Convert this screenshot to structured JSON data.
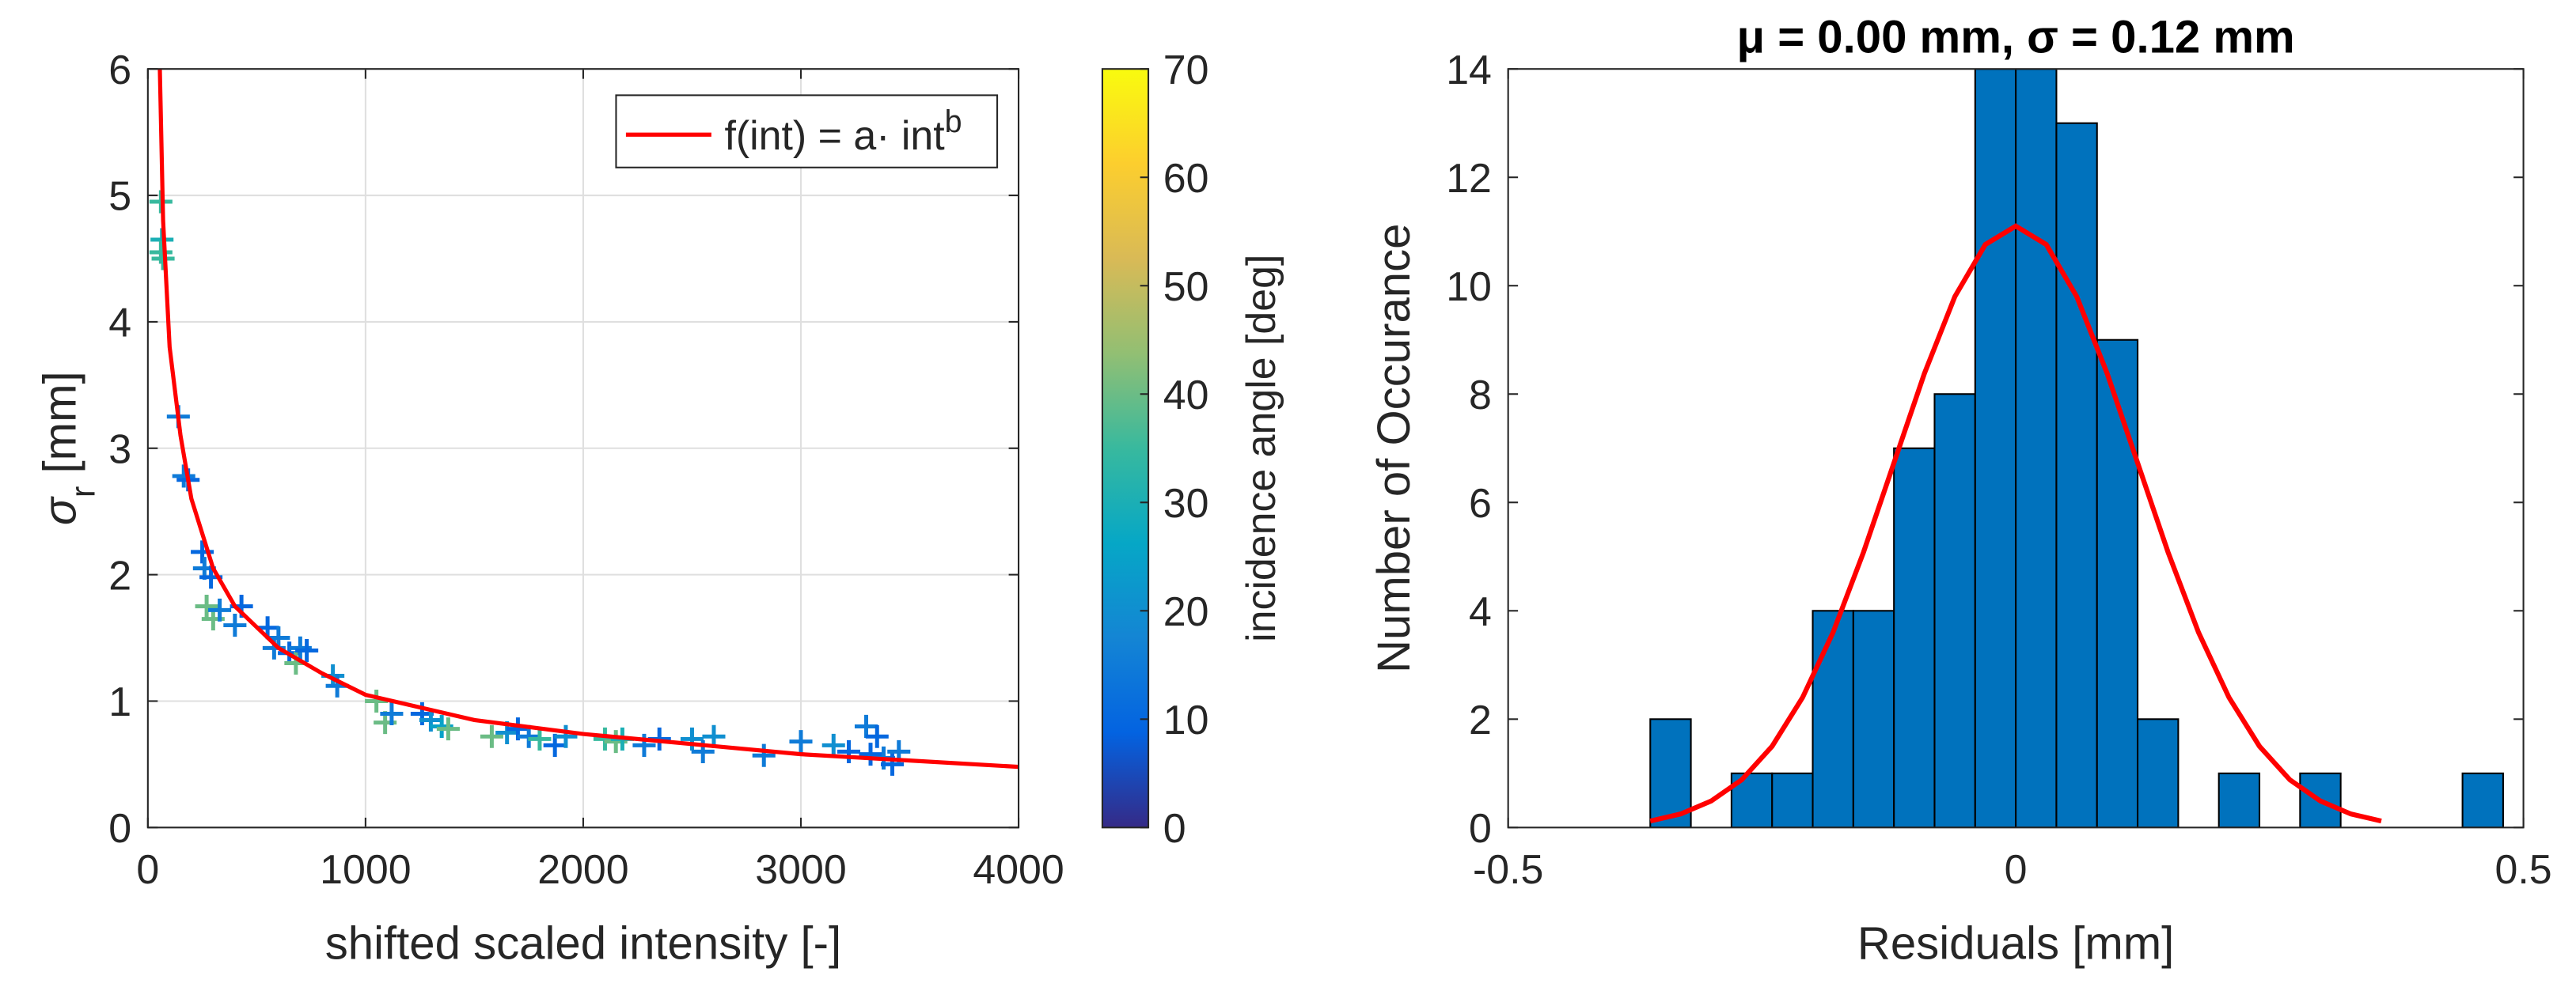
{
  "chart_data": [
    {
      "type": "scatter",
      "xlabel": "shifted scaled intensity [-]",
      "ylabel": "σ",
      "ylabel_sub": "r",
      "ylabel_rest": " [mm]",
      "xlim": [
        0,
        4000
      ],
      "xticks": [
        0,
        1000,
        2000,
        3000,
        4000
      ],
      "ylim": [
        0,
        6
      ],
      "yticks": [
        0,
        1,
        2,
        3,
        4,
        5,
        6
      ],
      "grid": true,
      "legend": "northeast",
      "series": [
        {
          "kind": "line",
          "name": "f(int) = a· int",
          "name_sup": "b",
          "color": "#ff0000",
          "x": [
            55,
            70,
            100,
            150,
            200,
            300,
            400,
            600,
            800,
            1000,
            1500,
            2000,
            3000,
            4000
          ],
          "values": [
            6,
            4.8,
            3.8,
            3.1,
            2.6,
            2.05,
            1.75,
            1.42,
            1.22,
            1.05,
            0.85,
            0.74,
            0.58,
            0.48
          ]
        },
        {
          "kind": "scatter",
          "x": [
            60,
            65,
            60,
            70,
            140,
            165,
            185,
            250,
            260,
            290,
            270,
            300,
            330,
            400,
            430,
            550,
            580,
            600,
            650,
            680,
            700,
            730,
            850,
            870,
            1050,
            1090,
            1120,
            1260,
            1300,
            1350,
            1380,
            1580,
            1650,
            1700,
            1750,
            1800,
            1870,
            1920,
            2100,
            2150,
            2180,
            2280,
            2350,
            2500,
            2550,
            2600,
            2830,
            3000,
            3150,
            3220,
            3300,
            3320,
            3350,
            3380,
            3420,
            3450
          ],
          "values": [
            4.95,
            4.65,
            4.55,
            4.5,
            3.25,
            2.78,
            2.75,
            2.18,
            2.05,
            1.98,
            1.75,
            1.65,
            1.72,
            1.6,
            1.75,
            1.58,
            1.42,
            1.5,
            1.38,
            1.3,
            1.42,
            1.4,
            1.2,
            1.12,
            1.0,
            0.83,
            0.9,
            0.9,
            0.85,
            0.8,
            0.78,
            0.72,
            0.75,
            0.78,
            0.72,
            0.7,
            0.65,
            0.72,
            0.7,
            0.68,
            0.7,
            0.65,
            0.7,
            0.7,
            0.6,
            0.72,
            0.57,
            0.68,
            0.65,
            0.6,
            0.8,
            0.58,
            0.72,
            0.55,
            0.5,
            0.6
          ],
          "c": [
            35,
            30,
            35,
            35,
            15,
            15,
            10,
            10,
            15,
            10,
            40,
            40,
            15,
            15,
            10,
            10,
            15,
            15,
            10,
            40,
            15,
            10,
            20,
            15,
            40,
            40,
            15,
            10,
            20,
            25,
            40,
            40,
            20,
            10,
            15,
            35,
            10,
            20,
            35,
            40,
            30,
            15,
            10,
            20,
            15,
            20,
            15,
            15,
            20,
            10,
            15,
            10,
            10,
            15,
            10,
            15
          ]
        }
      ],
      "colorbar": {
        "label": "incidence angle [deg]",
        "lim": [
          0,
          70
        ],
        "ticks": [
          0,
          10,
          20,
          30,
          40,
          50,
          60,
          70
        ],
        "colormap": [
          "#352a87",
          "#0363e1",
          "#1485d4",
          "#06a7c6",
          "#38b99e",
          "#92bf73",
          "#d9ba56",
          "#fcce2e",
          "#f9fb0e"
        ]
      }
    },
    {
      "type": "histogram",
      "title": "μ = 0.00 mm, σ = 0.12 mm",
      "xlabel": "Residuals [mm]",
      "ylabel": "Number of Occurance",
      "xlim": [
        -0.5,
        0.5
      ],
      "xticks": [
        -0.5,
        0,
        0.5
      ],
      "ylim": [
        0,
        14
      ],
      "yticks": [
        0,
        2,
        4,
        6,
        8,
        10,
        12,
        14
      ],
      "color": "#0072bd",
      "bins": [
        -0.36,
        -0.32,
        -0.28,
        -0.24,
        -0.2,
        -0.16,
        -0.12,
        -0.08,
        -0.04,
        0,
        0.04,
        0.08,
        0.12,
        0.16,
        0.2,
        0.24,
        0.28,
        0.32,
        0.36,
        0.4,
        0.44,
        0.48
      ],
      "values": [
        2,
        0,
        1,
        1,
        4,
        4,
        7,
        8,
        14,
        14,
        13,
        9,
        2,
        0,
        1,
        0,
        1,
        0,
        0,
        0,
        1
      ],
      "curve": {
        "color": "#ff0000",
        "x": [
          -0.36,
          -0.33,
          -0.3,
          -0.27,
          -0.24,
          -0.21,
          -0.18,
          -0.15,
          -0.12,
          -0.09,
          -0.06,
          -0.03,
          0,
          0.03,
          0.06,
          0.09,
          0.12,
          0.15,
          0.18,
          0.21,
          0.24,
          0.27,
          0.3,
          0.33,
          0.36
        ],
        "values": [
          0.12,
          0.25,
          0.49,
          0.88,
          1.5,
          2.4,
          3.6,
          5.08,
          6.73,
          8.38,
          9.8,
          10.76,
          11.1,
          10.76,
          9.8,
          8.38,
          6.73,
          5.08,
          3.6,
          2.4,
          1.5,
          0.88,
          0.49,
          0.25,
          0.12
        ]
      }
    }
  ]
}
